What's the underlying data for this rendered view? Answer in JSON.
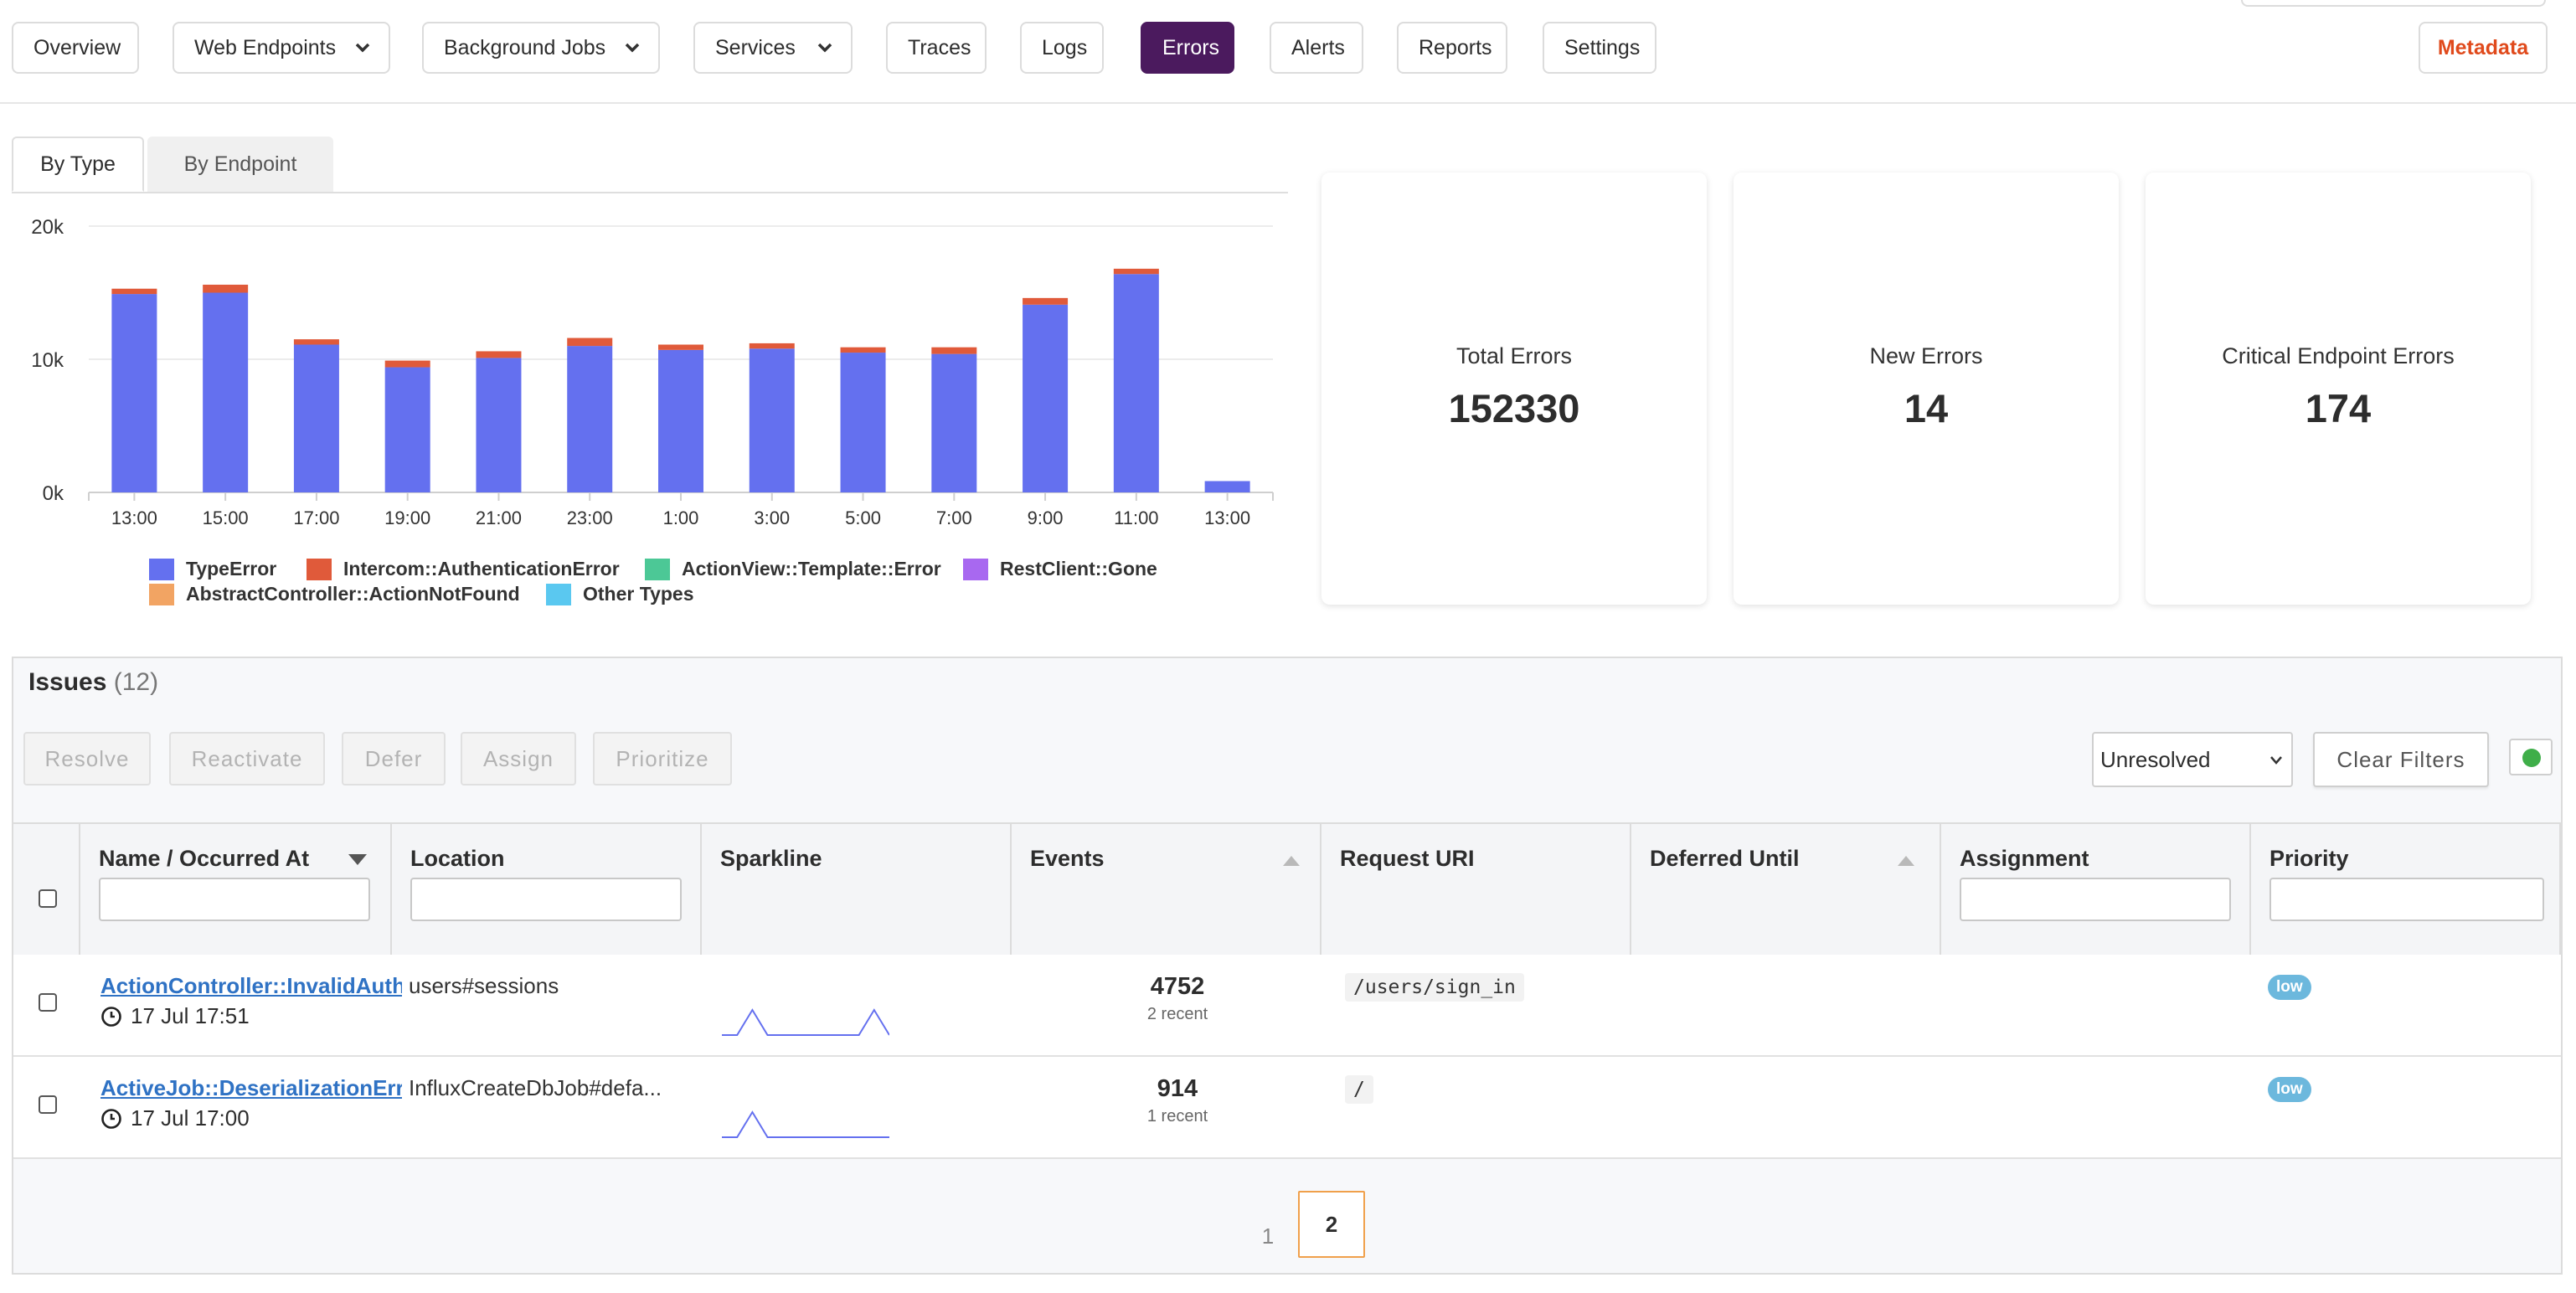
{
  "nav": {
    "items": [
      {
        "label": "Overview",
        "dropdown": false,
        "active": false
      },
      {
        "label": "Web Endpoints",
        "dropdown": true,
        "active": false
      },
      {
        "label": "Background Jobs",
        "dropdown": true,
        "active": false
      },
      {
        "label": "Services",
        "dropdown": true,
        "active": false
      },
      {
        "label": "Traces",
        "dropdown": false,
        "active": false
      },
      {
        "label": "Logs",
        "dropdown": false,
        "active": false
      },
      {
        "label": "Errors",
        "dropdown": false,
        "active": true
      },
      {
        "label": "Alerts",
        "dropdown": false,
        "active": false
      },
      {
        "label": "Reports",
        "dropdown": false,
        "active": false
      },
      {
        "label": "Settings",
        "dropdown": false,
        "active": false
      }
    ],
    "metadata_label": "Metadata",
    "active_color": "#4b1a5e",
    "metadata_color": "#e04a1c"
  },
  "chart_tabs": [
    {
      "label": "By Type",
      "active": true
    },
    {
      "label": "By Endpoint",
      "active": false
    }
  ],
  "chart_data": {
    "type": "bar",
    "stacked": true,
    "categories": [
      "13:00",
      "15:00",
      "17:00",
      "19:00",
      "21:00",
      "23:00",
      "1:00",
      "3:00",
      "5:00",
      "7:00",
      "9:00",
      "11:00",
      "13:00"
    ],
    "series": [
      {
        "name": "TypeError",
        "color": "#6470ef",
        "values": [
          14900,
          15000,
          11100,
          9400,
          10100,
          11000,
          10700,
          10800,
          10500,
          10400,
          14100,
          16400,
          850
        ]
      },
      {
        "name": "Intercom::AuthenticationError",
        "color": "#e05a3a",
        "values": [
          400,
          600,
          400,
          500,
          500,
          600,
          400,
          400,
          400,
          500,
          500,
          400,
          0
        ]
      },
      {
        "name": "ActionView::Template::Error",
        "color": "#4cc896",
        "values": [
          0,
          0,
          0,
          0,
          0,
          0,
          0,
          0,
          0,
          0,
          0,
          0,
          0
        ]
      },
      {
        "name": "RestClient::Gone",
        "color": "#a868f0",
        "values": [
          0,
          0,
          0,
          0,
          0,
          0,
          0,
          0,
          0,
          0,
          0,
          0,
          0
        ]
      },
      {
        "name": "AbstractController::ActionNotFound",
        "color": "#f2a463",
        "values": [
          0,
          0,
          0,
          0,
          0,
          0,
          0,
          0,
          0,
          0,
          0,
          0,
          0
        ]
      },
      {
        "name": "Other Types",
        "color": "#5ac8f0",
        "values": [
          0,
          0,
          0,
          0,
          0,
          0,
          0,
          0,
          0,
          0,
          0,
          0,
          0
        ]
      }
    ],
    "yticks": [
      "0k",
      "10k",
      "20k"
    ],
    "ylim": [
      0,
      20000
    ],
    "grid": true,
    "legend_position": "bottom-left"
  },
  "stats": [
    {
      "label": "Total Errors",
      "value": "152330"
    },
    {
      "label": "New Errors",
      "value": "14"
    },
    {
      "label": "Critical Endpoint Errors",
      "value": "174"
    }
  ],
  "issues": {
    "title": "Issues",
    "count": "(12)",
    "actions": [
      "Resolve",
      "Reactivate",
      "Defer",
      "Assign",
      "Prioritize"
    ],
    "status_filter": "Unresolved",
    "clear_filters_label": "Clear Filters",
    "live_indicator_color": "#3fae49",
    "columns": [
      "Name / Occurred At",
      "Location",
      "Sparkline",
      "Events",
      "Request URI",
      "Deferred Until",
      "Assignment",
      "Priority"
    ],
    "rows": [
      {
        "name": "ActionController::InvalidAuthenticityToken",
        "occurred_at": "17 Jul 17:51",
        "location": "users#sessions",
        "sparkline": [
          0,
          0,
          1,
          0,
          0,
          0,
          0,
          0,
          0,
          0,
          1,
          0
        ],
        "events": "4752",
        "recent": "2 recent",
        "request_uri": "/users/sign_in",
        "deferred_until": "",
        "assignment": "",
        "priority": "low"
      },
      {
        "name": "ActiveJob::DeserializationError",
        "occurred_at": "17 Jul 17:00",
        "location": "InfluxCreateDbJob#defa...",
        "sparkline": [
          0,
          0,
          1,
          0,
          0,
          0,
          0,
          0,
          0,
          0,
          0,
          0
        ],
        "events": "914",
        "recent": "1 recent",
        "request_uri": "/",
        "deferred_until": "",
        "assignment": "",
        "priority": "low"
      }
    ],
    "pagination": {
      "pages": [
        "1",
        "2"
      ],
      "current": "2"
    }
  }
}
